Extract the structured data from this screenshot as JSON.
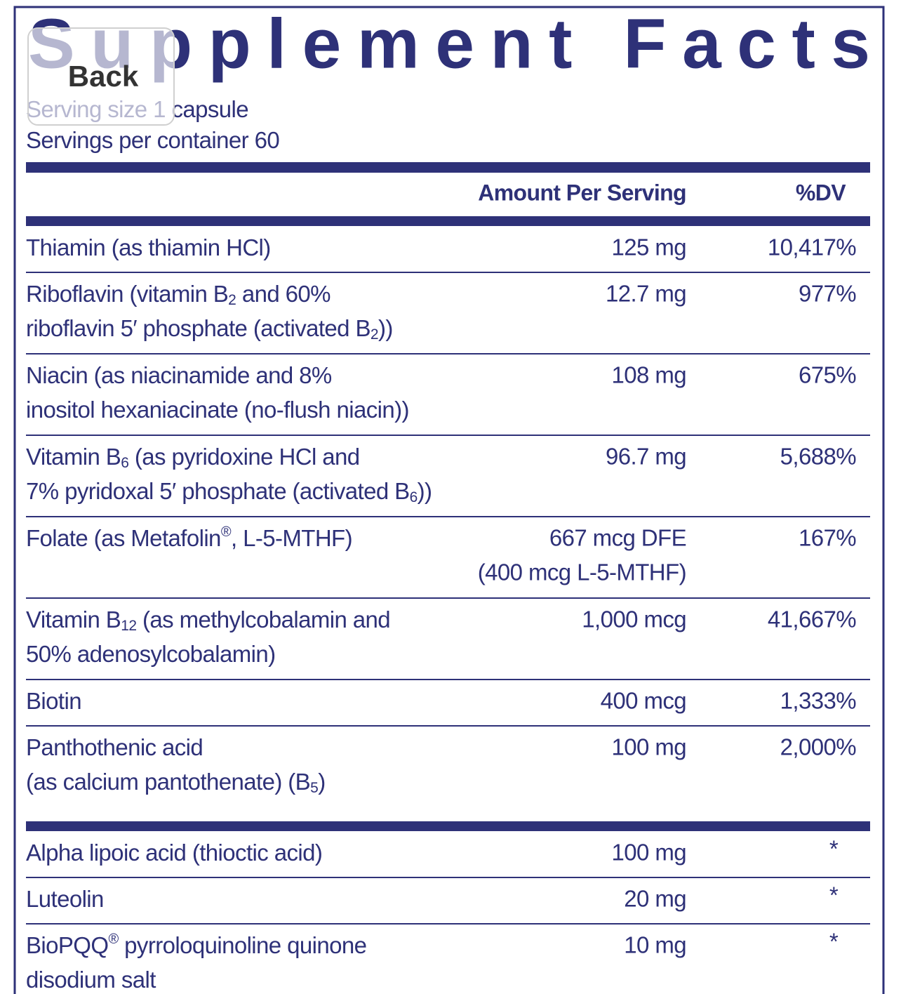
{
  "title": "Supplement Facts",
  "back_button": "Back",
  "serving": [
    {
      "label": "Serving size",
      "value": "1 capsule"
    },
    {
      "label": "Servings per container",
      "value": "60"
    }
  ],
  "columns": [
    "Amount Per Serving",
    "%DV"
  ],
  "sections": [
    [
      {
        "name": [
          [
            "Thiamin (as thiamin HCl)"
          ]
        ],
        "amount": [
          "125 mg"
        ],
        "dv": "10,417%"
      },
      {
        "name": [
          [
            "Riboflavin (vitamin B",
            {
              "sub": "2"
            },
            " and 60%"
          ],
          [
            "riboflavin 5′ phosphate (activated B",
            {
              "sub": "2"
            },
            "))"
          ]
        ],
        "amount": [
          "12.7 mg"
        ],
        "dv": "977%"
      },
      {
        "name": [
          [
            "Niacin (as niacinamide and 8%"
          ],
          [
            "inositol hexaniacinate (no-flush niacin))"
          ]
        ],
        "amount": [
          "108 mg"
        ],
        "dv": "675%"
      },
      {
        "name": [
          [
            "Vitamin B",
            {
              "sub": "6"
            },
            " (as pyridoxine HCl and"
          ],
          [
            "7% pyridoxal 5′ phosphate (activated B",
            {
              "sub": "6"
            },
            "))"
          ]
        ],
        "amount": [
          "96.7 mg"
        ],
        "dv": "5,688%"
      },
      {
        "name": [
          [
            "Folate (as Metafolin",
            {
              "sup": "®"
            },
            ", L-5-MTHF)"
          ]
        ],
        "amount": [
          "667 mcg DFE",
          "(400 mcg L-5-MTHF)"
        ],
        "dv": "167%"
      },
      {
        "name": [
          [
            "Vitamin B",
            {
              "sub": "12"
            },
            " (as methylcobalamin and"
          ],
          [
            "50% adenosylcobalamin)"
          ]
        ],
        "amount": [
          "1,000 mcg"
        ],
        "dv": "41,667%"
      },
      {
        "name": [
          [
            "Biotin"
          ]
        ],
        "amount": [
          "400 mcg"
        ],
        "dv": "1,333%"
      },
      {
        "name": [
          [
            "Panthothenic acid"
          ],
          [
            "(as calcium pantothenate) (B",
            {
              "sub": "5"
            },
            ")"
          ]
        ],
        "amount": [
          "100 mg"
        ],
        "dv": "2,000%"
      }
    ],
    [
      {
        "name": [
          [
            "Alpha lipoic acid (thioctic acid)"
          ]
        ],
        "amount": [
          "100 mg"
        ],
        "dv": "*"
      },
      {
        "name": [
          [
            "Luteolin"
          ]
        ],
        "amount": [
          "20 mg"
        ],
        "dv": "*"
      },
      {
        "name": [
          [
            "BioPQQ",
            {
              "sup": "®"
            },
            " pyrroloquinoline quinone"
          ],
          [
            "disodium salt"
          ]
        ],
        "amount": [
          "10 mg"
        ],
        "dv": "*"
      }
    ]
  ]
}
